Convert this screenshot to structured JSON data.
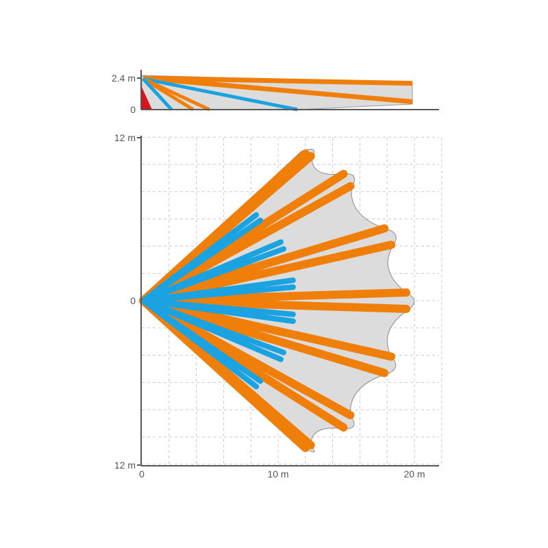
{
  "colors": {
    "far_beam": "#f07f0a",
    "near_beam": "#1ba2e0",
    "coverage_fill": "#dcdcdc",
    "coverage_stroke": "#9a9a9a",
    "sensor": "#d9131b",
    "axis": "#555555",
    "grid": "#c8c8c8"
  },
  "side_view": {
    "y_ticks": [
      "2.4 m",
      "0"
    ]
  },
  "top_view": {
    "y_ticks": {
      "top": "12 m",
      "middle": "0",
      "bottom": "12 m"
    },
    "x_ticks": [
      "0",
      "10 m",
      "20 m"
    ]
  },
  "chart_data": {
    "type": "scatter",
    "views": [
      {
        "view": "side",
        "ylim_m": [
          0,
          2.4
        ],
        "beams": [
          {
            "kind": "far",
            "reach_m": 20,
            "end_height_m": 2.0
          },
          {
            "kind": "far",
            "reach_m": 20,
            "end_height_m": 0.6
          },
          {
            "kind": "near",
            "reach_m": 11.5,
            "end_height_m": 0
          },
          {
            "kind": "far",
            "reach_m": 5,
            "end_height_m": 0
          },
          {
            "kind": "far",
            "reach_m": 3.8,
            "end_height_m": 0
          },
          {
            "kind": "near",
            "reach_m": 2.2,
            "end_height_m": 0
          }
        ]
      },
      {
        "view": "top",
        "xlim_m": [
          0,
          22
        ],
        "ylim_m": [
          -12,
          12
        ],
        "far_beams_end_xy_m": [
          [
            12.0,
            10.8
          ],
          [
            12.4,
            10.6
          ],
          [
            14.8,
            9.3
          ],
          [
            15.3,
            8.4
          ],
          [
            17.8,
            5.3
          ],
          [
            18.3,
            4.1
          ],
          [
            19.4,
            0.6
          ],
          [
            19.4,
            -0.6
          ],
          [
            18.3,
            -4.1
          ],
          [
            17.8,
            -5.3
          ],
          [
            15.3,
            -8.4
          ],
          [
            14.8,
            -9.3
          ],
          [
            12.4,
            -10.6
          ],
          [
            12.0,
            -10.8
          ]
        ],
        "near_beams_end_xy_m": [
          [
            8.4,
            6.3
          ],
          [
            8.7,
            5.9
          ],
          [
            10.2,
            4.3
          ],
          [
            10.4,
            3.8
          ],
          [
            11.1,
            1.5
          ],
          [
            11.1,
            1.0
          ],
          [
            11.1,
            -1.0
          ],
          [
            11.1,
            -1.5
          ],
          [
            10.4,
            -3.8
          ],
          [
            10.2,
            -4.3
          ],
          [
            8.7,
            -5.9
          ],
          [
            8.4,
            -6.3
          ]
        ]
      }
    ]
  }
}
